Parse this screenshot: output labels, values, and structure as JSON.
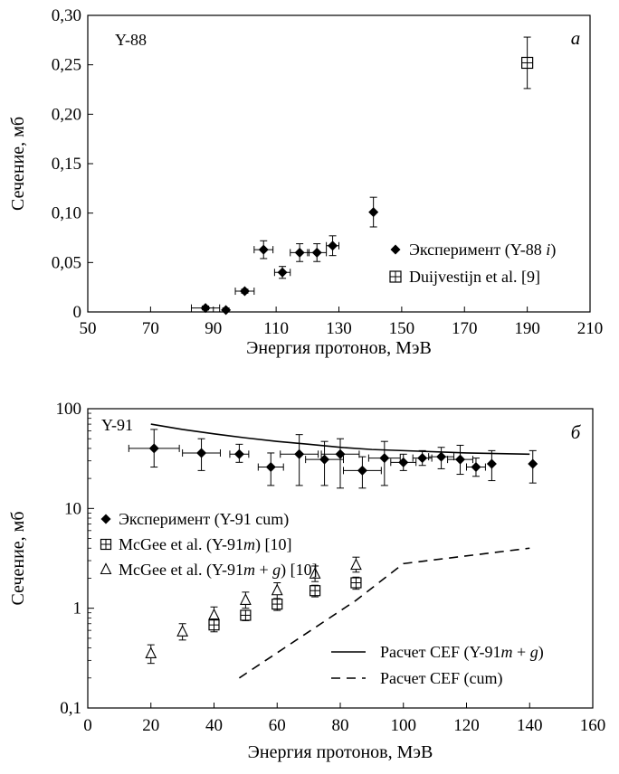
{
  "chart_data": [
    {
      "type": "scatter",
      "panel_label": "а",
      "tag": "Y-88",
      "xlabel": "Энергия протонов, МэВ",
      "ylabel": "Сечение, мб",
      "xlim": [
        50,
        210
      ],
      "ylim": [
        0,
        0.3
      ],
      "xticks": [
        "50",
        "70",
        "90",
        "110",
        "130",
        "150",
        "170",
        "190",
        "210"
      ],
      "yticks": [
        "0",
        "0,05",
        "0,10",
        "0,15",
        "0,20",
        "0,25",
        "0,30"
      ],
      "legend_position": "right",
      "series": [
        {
          "name": "Эксперимент (Y-88 i)",
          "marker": "diamond",
          "points": [
            {
              "x": 87.5,
              "y": 0.004,
              "xerr": 4.5,
              "yerr": 0.002
            },
            {
              "x": 94,
              "y": 0.002,
              "xerr": 0,
              "yerr": 0.002
            },
            {
              "x": 100,
              "y": 0.021,
              "xerr": 3,
              "yerr": 0.002
            },
            {
              "x": 106,
              "y": 0.063,
              "xerr": 3,
              "yerr": 0.009
            },
            {
              "x": 112,
              "y": 0.04,
              "xerr": 2.5,
              "yerr": 0.006
            },
            {
              "x": 117.5,
              "y": 0.06,
              "xerr": 3,
              "yerr": 0.009
            },
            {
              "x": 123,
              "y": 0.06,
              "xerr": 3,
              "yerr": 0.009
            },
            {
              "x": 128,
              "y": 0.067,
              "xerr": 2,
              "yerr": 0.01
            },
            {
              "x": 141,
              "y": 0.101,
              "xerr": 0,
              "yerr": 0.015
            }
          ]
        },
        {
          "name": "Duijvestijn et al. [9]",
          "marker": "square-open",
          "points": [
            {
              "x": 190,
              "y": 0.252,
              "xerr": 0,
              "yerr": 0.026
            }
          ]
        }
      ]
    },
    {
      "type": "scatter",
      "panel_label": "б",
      "tag": "Y-91",
      "xlabel": "Энергия протонов, МэВ",
      "ylabel": "Сечение, мб",
      "xlim": [
        0,
        160
      ],
      "ylim": [
        0.1,
        100
      ],
      "yscale": "log",
      "xticks": [
        "0",
        "20",
        "40",
        "60",
        "80",
        "100",
        "120",
        "140",
        "160"
      ],
      "yticks": [
        "0,1",
        "1",
        "10",
        "100"
      ],
      "legend_position": "left (markers), bottom-right (lines)",
      "series": [
        {
          "name": "Эксперимент (Y-91 cum)",
          "marker": "diamond",
          "points": [
            {
              "x": 21,
              "y": 40,
              "xerr": 8,
              "yerr": [
                14,
                22
              ]
            },
            {
              "x": 36,
              "y": 36,
              "xerr": 6,
              "yerr": [
                12,
                14
              ]
            },
            {
              "x": 48,
              "y": 35,
              "xerr": 3,
              "yerr": [
                6,
                9
              ]
            },
            {
              "x": 58,
              "y": 26,
              "xerr": 4,
              "yerr": [
                9,
                10
              ]
            },
            {
              "x": 67,
              "y": 35,
              "xerr": 6,
              "yerr": [
                18,
                20
              ]
            },
            {
              "x": 75,
              "y": 31,
              "xerr": 6,
              "yerr": [
                14,
                16
              ]
            },
            {
              "x": 80,
              "y": 35,
              "xerr": 6,
              "yerr": [
                19,
                15
              ]
            },
            {
              "x": 87,
              "y": 24,
              "xerr": 6,
              "yerr": [
                8,
                9
              ]
            },
            {
              "x": 94,
              "y": 32,
              "xerr": 5,
              "yerr": [
                15,
                15
              ]
            },
            {
              "x": 100,
              "y": 29,
              "xerr": 4,
              "yerr": [
                5,
                6
              ]
            },
            {
              "x": 106,
              "y": 32,
              "xerr": 3,
              "yerr": [
                5,
                6
              ]
            },
            {
              "x": 112,
              "y": 33,
              "xerr": 4,
              "yerr": [
                8,
                8
              ]
            },
            {
              "x": 118,
              "y": 31,
              "xerr": 4,
              "yerr": [
                9,
                12
              ]
            },
            {
              "x": 123,
              "y": 26,
              "xerr": 3,
              "yerr": [
                5,
                6
              ]
            },
            {
              "x": 128,
              "y": 28,
              "xerr": 0,
              "yerr": [
                9,
                10
              ]
            },
            {
              "x": 141,
              "y": 28,
              "xerr": 0,
              "yerr": [
                10,
                10
              ]
            }
          ]
        },
        {
          "name": "McGee et al. (Y-91m) [10]",
          "marker": "square-open",
          "points": [
            {
              "x": 40,
              "y": 0.68,
              "yerr": [
                0.1,
                0.1
              ]
            },
            {
              "x": 50,
              "y": 0.85,
              "yerr": [
                0.1,
                0.1
              ]
            },
            {
              "x": 60,
              "y": 1.1,
              "yerr": [
                0.15,
                0.15
              ]
            },
            {
              "x": 72,
              "y": 1.5,
              "yerr": [
                0.2,
                0.2
              ]
            },
            {
              "x": 85,
              "y": 1.8,
              "yerr": [
                0.25,
                0.25
              ]
            }
          ]
        },
        {
          "name": "McGee et al. (Y-91m + g) [10]",
          "marker": "triangle-open",
          "points": [
            {
              "x": 20,
              "y": 0.35,
              "yerr": [
                0.07,
                0.08
              ]
            },
            {
              "x": 30,
              "y": 0.58,
              "yerr": [
                0.1,
                0.12
              ]
            },
            {
              "x": 40,
              "y": 0.85,
              "yerr": [
                0.15,
                0.18
              ]
            },
            {
              "x": 50,
              "y": 1.2,
              "yerr": [
                0.2,
                0.25
              ]
            },
            {
              "x": 60,
              "y": 1.5,
              "yerr": [
                0.25,
                0.3
              ]
            },
            {
              "x": 72,
              "y": 2.2,
              "yerr": [
                0.35,
                0.45
              ]
            },
            {
              "x": 85,
              "y": 2.7,
              "yerr": [
                0.4,
                0.55
              ]
            }
          ]
        },
        {
          "name": "Расчет CEF (Y-91m + g)",
          "style": "solid-line",
          "points": [
            {
              "x": 20,
              "y": 70
            },
            {
              "x": 30,
              "y": 62
            },
            {
              "x": 40,
              "y": 56
            },
            {
              "x": 50,
              "y": 51
            },
            {
              "x": 60,
              "y": 47
            },
            {
              "x": 70,
              "y": 44
            },
            {
              "x": 80,
              "y": 41
            },
            {
              "x": 90,
              "y": 39
            },
            {
              "x": 100,
              "y": 38
            },
            {
              "x": 120,
              "y": 36
            },
            {
              "x": 140,
              "y": 35
            }
          ]
        },
        {
          "name": "Расчет CEF (cum)",
          "style": "dashed-line",
          "points": [
            {
              "x": 48,
              "y": 0.2
            },
            {
              "x": 85,
              "y": 1.2
            },
            {
              "x": 100,
              "y": 2.8
            },
            {
              "x": 140,
              "y": 4.0
            }
          ]
        }
      ]
    }
  ]
}
